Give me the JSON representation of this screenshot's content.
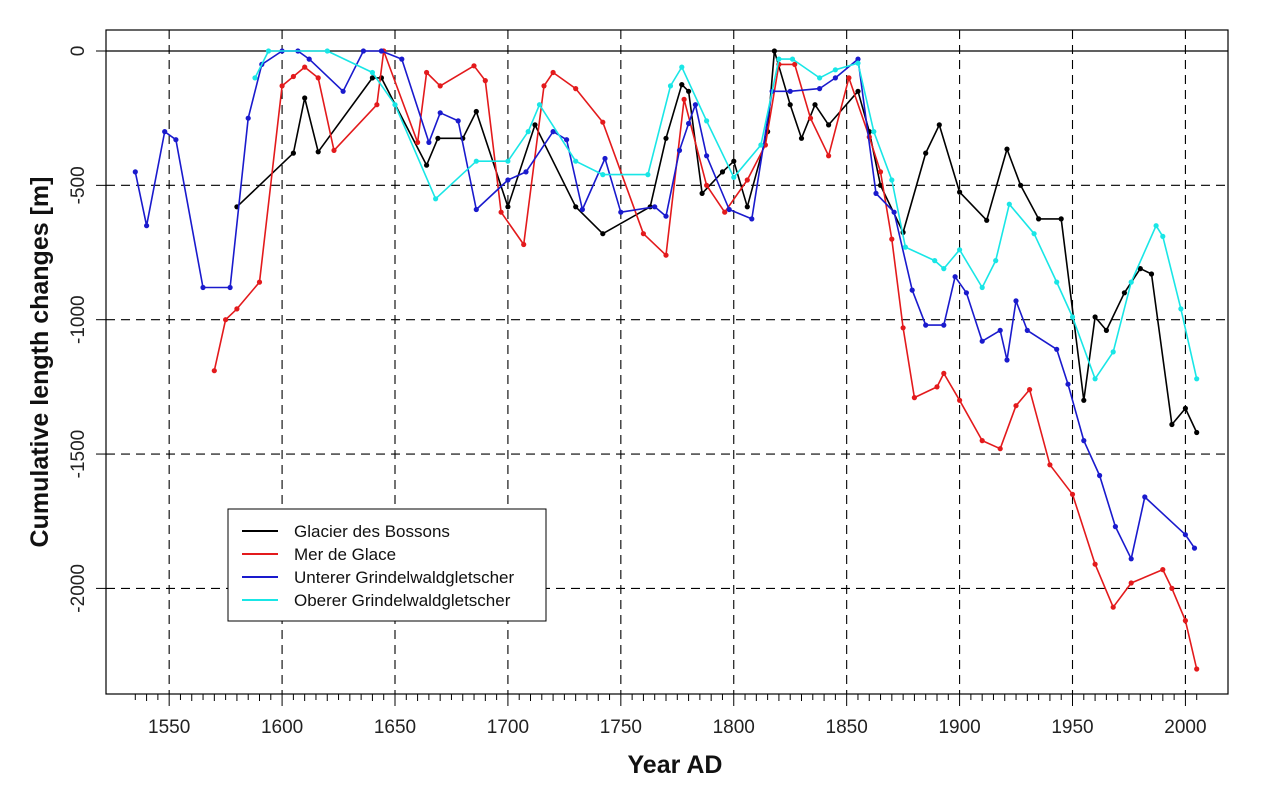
{
  "chart_data": {
    "type": "line",
    "title": "",
    "xlabel": "Year AD",
    "ylabel": "Cumulative length changes [m]",
    "xlim": [
      1530,
      2010
    ],
    "ylim": [
      -2400,
      0
    ],
    "xticks": [
      1550,
      1600,
      1650,
      1700,
      1750,
      1800,
      1850,
      1900,
      1950,
      2000
    ],
    "yticks": [
      0,
      -500,
      -1000,
      -1500,
      -2000
    ],
    "grid": true,
    "legend_position": "bottom-left",
    "series": [
      {
        "name": "Glacier des Bossons",
        "color": "#000000",
        "points": [
          [
            1580,
            -580
          ],
          [
            1605,
            -380
          ],
          [
            1610,
            -175
          ],
          [
            1616,
            -375
          ],
          [
            1640,
            -100
          ],
          [
            1644,
            -100
          ],
          [
            1664,
            -425
          ],
          [
            1669,
            -325
          ],
          [
            1680,
            -325
          ],
          [
            1686,
            -225
          ],
          [
            1700,
            -580
          ],
          [
            1712,
            -275
          ],
          [
            1730,
            -580
          ],
          [
            1742,
            -680
          ],
          [
            1763,
            -580
          ],
          [
            1770,
            -325
          ],
          [
            1777,
            -125
          ],
          [
            1780,
            -150
          ],
          [
            1786,
            -530
          ],
          [
            1795,
            -450
          ],
          [
            1800,
            -410
          ],
          [
            1806,
            -580
          ],
          [
            1815,
            -300
          ],
          [
            1818,
            0
          ],
          [
            1825,
            -200
          ],
          [
            1830,
            -325
          ],
          [
            1836,
            -200
          ],
          [
            1842,
            -275
          ],
          [
            1855,
            -150
          ],
          [
            1860,
            -300
          ],
          [
            1865,
            -500
          ],
          [
            1875,
            -675
          ],
          [
            1885,
            -380
          ],
          [
            1891,
            -275
          ],
          [
            1900,
            -525
          ],
          [
            1912,
            -630
          ],
          [
            1921,
            -365
          ],
          [
            1927,
            -500
          ],
          [
            1935,
            -625
          ],
          [
            1945,
            -625
          ],
          [
            1955,
            -1300
          ],
          [
            1960,
            -990
          ],
          [
            1965,
            -1040
          ],
          [
            1973,
            -900
          ],
          [
            1980,
            -810
          ],
          [
            1985,
            -830
          ],
          [
            1994,
            -1390
          ],
          [
            2000,
            -1330
          ],
          [
            2005,
            -1420
          ]
        ]
      },
      {
        "name": "Mer de Glace",
        "color": "#e31a1c",
        "points": [
          [
            1570,
            -1190
          ],
          [
            1575,
            -1000
          ],
          [
            1580,
            -960
          ],
          [
            1590,
            -860
          ],
          [
            1600,
            -130
          ],
          [
            1605,
            -95
          ],
          [
            1610,
            -60
          ],
          [
            1616,
            -100
          ],
          [
            1623,
            -370
          ],
          [
            1642,
            -200
          ],
          [
            1645,
            0
          ],
          [
            1660,
            -340
          ],
          [
            1664,
            -80
          ],
          [
            1670,
            -130
          ],
          [
            1685,
            -55
          ],
          [
            1690,
            -110
          ],
          [
            1697,
            -600
          ],
          [
            1707,
            -720
          ],
          [
            1716,
            -130
          ],
          [
            1720,
            -80
          ],
          [
            1730,
            -140
          ],
          [
            1742,
            -265
          ],
          [
            1760,
            -680
          ],
          [
            1770,
            -760
          ],
          [
            1778,
            -180
          ],
          [
            1788,
            -500
          ],
          [
            1796,
            -600
          ],
          [
            1806,
            -480
          ],
          [
            1814,
            -350
          ],
          [
            1820,
            -50
          ],
          [
            1827,
            -50
          ],
          [
            1834,
            -250
          ],
          [
            1842,
            -390
          ],
          [
            1851,
            -100
          ],
          [
            1860,
            -320
          ],
          [
            1865,
            -450
          ],
          [
            1870,
            -700
          ],
          [
            1875,
            -1030
          ],
          [
            1880,
            -1290
          ],
          [
            1890,
            -1250
          ],
          [
            1893,
            -1200
          ],
          [
            1900,
            -1300
          ],
          [
            1910,
            -1450
          ],
          [
            1918,
            -1480
          ],
          [
            1925,
            -1320
          ],
          [
            1931,
            -1260
          ],
          [
            1940,
            -1540
          ],
          [
            1950,
            -1650
          ],
          [
            1960,
            -1910
          ],
          [
            1968,
            -2070
          ],
          [
            1976,
            -1980
          ],
          [
            1990,
            -1930
          ],
          [
            1994,
            -2000
          ],
          [
            2000,
            -2120
          ],
          [
            2005,
            -2300
          ]
        ]
      },
      {
        "name": "Unterer Grindelwaldgletscher",
        "color": "#1a1acd",
        "points": [
          [
            1535,
            -450
          ],
          [
            1540,
            -650
          ],
          [
            1548,
            -300
          ],
          [
            1553,
            -330
          ],
          [
            1565,
            -880
          ],
          [
            1577,
            -880
          ],
          [
            1585,
            -250
          ],
          [
            1591,
            -50
          ],
          [
            1600,
            0
          ],
          [
            1607,
            0
          ],
          [
            1612,
            -30
          ],
          [
            1627,
            -150
          ],
          [
            1636,
            0
          ],
          [
            1644,
            0
          ],
          [
            1653,
            -30
          ],
          [
            1665,
            -340
          ],
          [
            1670,
            -230
          ],
          [
            1678,
            -260
          ],
          [
            1686,
            -590
          ],
          [
            1700,
            -480
          ],
          [
            1708,
            -450
          ],
          [
            1720,
            -300
          ],
          [
            1726,
            -330
          ],
          [
            1733,
            -590
          ],
          [
            1743,
            -400
          ],
          [
            1750,
            -600
          ],
          [
            1765,
            -580
          ],
          [
            1770,
            -615
          ],
          [
            1776,
            -370
          ],
          [
            1780,
            -270
          ],
          [
            1783,
            -200
          ],
          [
            1788,
            -390
          ],
          [
            1798,
            -590
          ],
          [
            1808,
            -625
          ],
          [
            1817,
            -150
          ],
          [
            1825,
            -150
          ],
          [
            1838,
            -140
          ],
          [
            1845,
            -100
          ],
          [
            1855,
            -30
          ],
          [
            1863,
            -530
          ],
          [
            1871,
            -600
          ],
          [
            1879,
            -890
          ],
          [
            1885,
            -1020
          ],
          [
            1893,
            -1020
          ],
          [
            1898,
            -840
          ],
          [
            1903,
            -900
          ],
          [
            1910,
            -1080
          ],
          [
            1918,
            -1040
          ],
          [
            1921,
            -1150
          ],
          [
            1925,
            -930
          ],
          [
            1930,
            -1040
          ],
          [
            1943,
            -1110
          ],
          [
            1948,
            -1240
          ],
          [
            1955,
            -1450
          ],
          [
            1962,
            -1580
          ],
          [
            1969,
            -1770
          ],
          [
            1976,
            -1890
          ],
          [
            1982,
            -1660
          ],
          [
            2000,
            -1800
          ],
          [
            2004,
            -1850
          ]
        ]
      },
      {
        "name": "Oberer Grindelwaldgletscher",
        "color": "#19e6e6",
        "points": [
          [
            1588,
            -100
          ],
          [
            1594,
            0
          ],
          [
            1620,
            0
          ],
          [
            1640,
            -80
          ],
          [
            1650,
            -200
          ],
          [
            1668,
            -550
          ],
          [
            1686,
            -410
          ],
          [
            1700,
            -410
          ],
          [
            1709,
            -300
          ],
          [
            1714,
            -200
          ],
          [
            1730,
            -410
          ],
          [
            1742,
            -460
          ],
          [
            1762,
            -460
          ],
          [
            1772,
            -130
          ],
          [
            1777,
            -60
          ],
          [
            1788,
            -260
          ],
          [
            1800,
            -470
          ],
          [
            1812,
            -350
          ],
          [
            1820,
            -30
          ],
          [
            1826,
            -30
          ],
          [
            1838,
            -100
          ],
          [
            1845,
            -70
          ],
          [
            1855,
            -45
          ],
          [
            1862,
            -300
          ],
          [
            1870,
            -480
          ],
          [
            1876,
            -730
          ],
          [
            1889,
            -780
          ],
          [
            1893,
            -810
          ],
          [
            1900,
            -740
          ],
          [
            1910,
            -880
          ],
          [
            1916,
            -780
          ],
          [
            1922,
            -570
          ],
          [
            1933,
            -680
          ],
          [
            1943,
            -860
          ],
          [
            1950,
            -990
          ],
          [
            1960,
            -1220
          ],
          [
            1968,
            -1120
          ],
          [
            1976,
            -860
          ],
          [
            1987,
            -650
          ],
          [
            1990,
            -690
          ],
          [
            1998,
            -960
          ],
          [
            2005,
            -1220
          ]
        ]
      }
    ]
  }
}
